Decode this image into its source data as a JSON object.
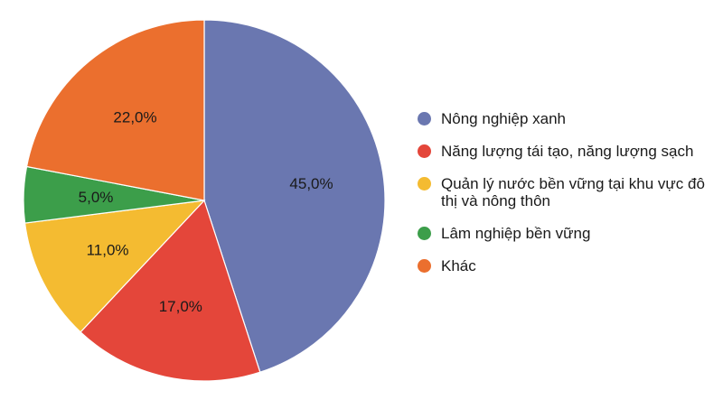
{
  "chart_data": {
    "type": "pie",
    "title": "",
    "start_angle_deg": 0,
    "direction": "clockwise",
    "legend_position": "right",
    "slices": [
      {
        "label": "Nông nghiệp xanh",
        "value": 45.0,
        "value_label": "45,0%",
        "color": "#6a77b0"
      },
      {
        "label": "Năng lượng tái tạo, năng lượng sạch",
        "value": 17.0,
        "value_label": "17,0%",
        "color": "#e4463a"
      },
      {
        "label": "Quản lý nước bền vững tại khu vực đô thị và nông thôn",
        "value": 11.0,
        "value_label": "11,0%",
        "color": "#f4bb31"
      },
      {
        "label": "Lâm nghiệp bền vững",
        "value": 5.0,
        "value_label": "5,0%",
        "color": "#3c9e4a"
      },
      {
        "label": "Khác",
        "value": 22.0,
        "value_label": "22,0%",
        "color": "#eb6f2e"
      }
    ]
  }
}
